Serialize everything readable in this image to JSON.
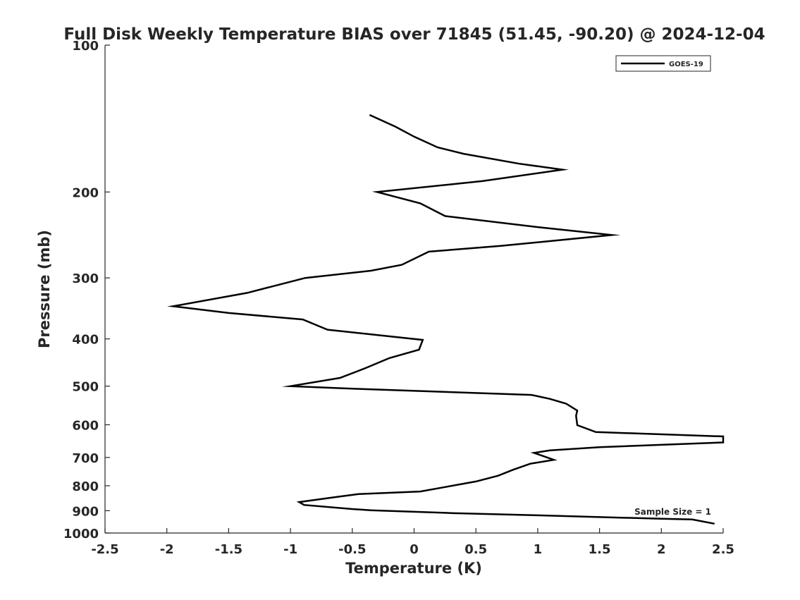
{
  "chart_data": {
    "type": "line",
    "title": "Full Disk Weekly Temperature BIAS over 71845 (51.45, -90.20) @ 2024-12-04",
    "xlabel": "Temperature (K)",
    "ylabel": "Pressure (mb)",
    "xlim": [
      -2.5,
      2.5
    ],
    "ylim": [
      100,
      1000
    ],
    "y_scale": "log",
    "y_reversed": true,
    "grid": false,
    "legend_position": "top-right",
    "x_ticks": [
      -2.5,
      -2,
      -1.5,
      -1,
      -0.5,
      0,
      0.5,
      1,
      1.5,
      2,
      2.5
    ],
    "x_tick_labels": [
      "-2.5",
      "-2",
      "-1.5",
      "-1",
      "-0.5",
      "0",
      "0.5",
      "1",
      "1.5",
      "2",
      "2.5"
    ],
    "y_ticks": [
      100,
      200,
      300,
      400,
      500,
      600,
      700,
      800,
      900,
      1000
    ],
    "y_tick_labels": [
      "100",
      "200",
      "300",
      "400",
      "500",
      "600",
      "700",
      "800",
      "900",
      "1000"
    ],
    "series": [
      {
        "name": "GOES-19",
        "color": "#000000",
        "points": [
          {
            "x": -0.36,
            "p": 139
          },
          {
            "x": -0.15,
            "p": 147
          },
          {
            "x": 0.0,
            "p": 154
          },
          {
            "x": 0.19,
            "p": 162
          },
          {
            "x": 0.4,
            "p": 167
          },
          {
            "x": 0.85,
            "p": 175
          },
          {
            "x": 1.2,
            "p": 180
          },
          {
            "x": 0.55,
            "p": 190
          },
          {
            "x": -0.3,
            "p": 200
          },
          {
            "x": 0.05,
            "p": 211
          },
          {
            "x": 0.25,
            "p": 224
          },
          {
            "x": 1.0,
            "p": 236
          },
          {
            "x": 1.6,
            "p": 245
          },
          {
            "x": 0.7,
            "p": 258
          },
          {
            "x": 0.12,
            "p": 265
          },
          {
            "x": -0.1,
            "p": 282
          },
          {
            "x": -0.35,
            "p": 290
          },
          {
            "x": -0.88,
            "p": 300
          },
          {
            "x": -1.35,
            "p": 322
          },
          {
            "x": -1.95,
            "p": 343
          },
          {
            "x": -1.5,
            "p": 354
          },
          {
            "x": -0.9,
            "p": 365
          },
          {
            "x": -0.7,
            "p": 383
          },
          {
            "x": 0.07,
            "p": 402
          },
          {
            "x": 0.04,
            "p": 421
          },
          {
            "x": -0.2,
            "p": 438
          },
          {
            "x": -0.4,
            "p": 460
          },
          {
            "x": -0.6,
            "p": 481
          },
          {
            "x": -1.0,
            "p": 500
          },
          {
            "x": -0.4,
            "p": 507
          },
          {
            "x": 0.95,
            "p": 521
          },
          {
            "x": 1.1,
            "p": 531
          },
          {
            "x": 1.23,
            "p": 543
          },
          {
            "x": 1.32,
            "p": 561
          },
          {
            "x": 1.31,
            "p": 575
          },
          {
            "x": 1.32,
            "p": 601
          },
          {
            "x": 1.47,
            "p": 621
          },
          {
            "x": 2.5,
            "p": 634
          },
          {
            "x": 2.5,
            "p": 652
          },
          {
            "x": 1.5,
            "p": 667
          },
          {
            "x": 1.1,
            "p": 677
          },
          {
            "x": 0.97,
            "p": 685
          },
          {
            "x": 1.13,
            "p": 708
          },
          {
            "x": 0.94,
            "p": 721
          },
          {
            "x": 0.8,
            "p": 742
          },
          {
            "x": 0.68,
            "p": 763
          },
          {
            "x": 0.5,
            "p": 784
          },
          {
            "x": 0.25,
            "p": 805
          },
          {
            "x": 0.05,
            "p": 822
          },
          {
            "x": -0.45,
            "p": 832
          },
          {
            "x": -0.65,
            "p": 845
          },
          {
            "x": -0.93,
            "p": 864
          },
          {
            "x": -0.89,
            "p": 876
          },
          {
            "x": -0.5,
            "p": 893
          },
          {
            "x": -0.35,
            "p": 898
          },
          {
            "x": 0.3,
            "p": 910
          },
          {
            "x": 1.0,
            "p": 920
          },
          {
            "x": 2.0,
            "p": 935
          },
          {
            "x": 2.25,
            "p": 938
          },
          {
            "x": 2.43,
            "p": 957
          }
        ]
      }
    ],
    "annotations": [
      "Sample Size = 1"
    ]
  }
}
